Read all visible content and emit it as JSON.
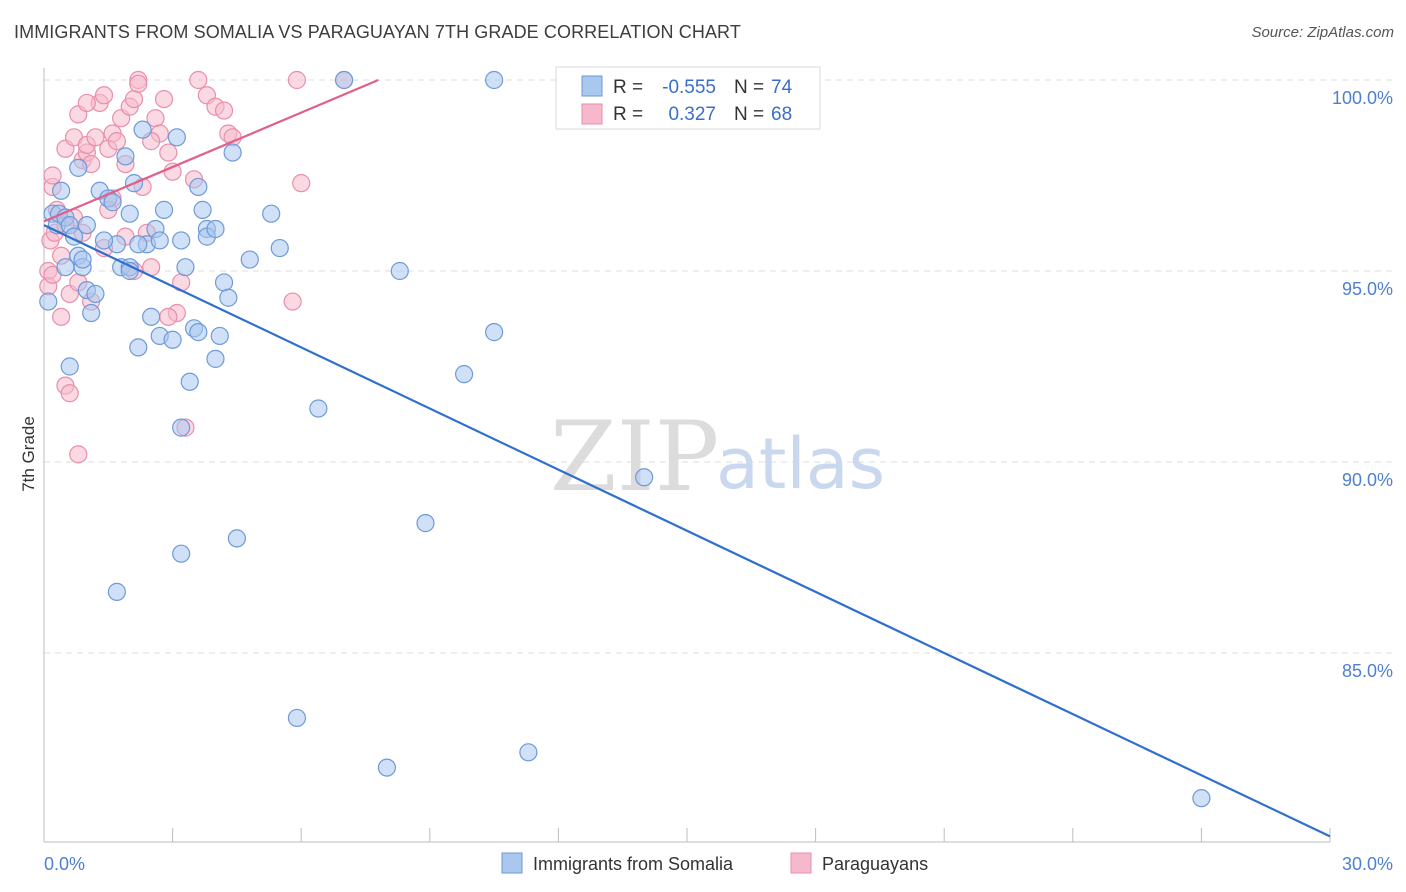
{
  "title": "IMMIGRANTS FROM SOMALIA VS PARAGUAYAN 7TH GRADE CORRELATION CHART",
  "source": "Source: ZipAtlas.com",
  "watermark": {
    "zip": "ZIP",
    "atlas": "atlas"
  },
  "colors": {
    "somalia_fill": "#aac7ee",
    "somalia_stroke": "#6f9ad8",
    "somalia_line": "#2f6fce",
    "paraguay_fill": "#f6b9cc",
    "paraguay_stroke": "#e98eab",
    "paraguay_line": "#e0608a",
    "tick_label": "#4f7fcf",
    "grid": "#dddddd"
  },
  "stats_box": {
    "rows": [
      {
        "r_label": "R =",
        "r_value": "-0.555",
        "n_label": "N =",
        "n_value": "74"
      },
      {
        "r_label": "R =",
        "r_value": "0.327",
        "n_label": "N =",
        "n_value": "68"
      }
    ]
  },
  "chart_data": {
    "type": "scatter",
    "title": "IMMIGRANTS FROM SOMALIA VS PARAGUAYAN 7TH GRADE CORRELATION CHART",
    "xlabel": "",
    "ylabel": "7th Grade",
    "xlim": [
      0,
      30
    ],
    "ylim": [
      80.2,
      100.9
    ],
    "x_tick_labels": [
      "0.0%",
      "30.0%"
    ],
    "y_ticks": [
      85,
      90,
      95,
      100
    ],
    "y_tick_labels": [
      "85.0%",
      "90.0%",
      "95.0%",
      "100.0%"
    ],
    "grid": true,
    "legend_position": "bottom-center",
    "series": [
      {
        "name": "Immigrants from Somalia",
        "r": -0.555,
        "n": 74,
        "trend": [
          [
            0,
            96.2
          ],
          [
            30,
            80.2
          ]
        ],
        "points": [
          [
            0.1,
            94.2
          ],
          [
            0.2,
            96.5
          ],
          [
            0.3,
            96.2
          ],
          [
            0.35,
            96.5
          ],
          [
            0.4,
            97.1
          ],
          [
            0.5,
            96.4
          ],
          [
            0.5,
            95.1
          ],
          [
            0.6,
            96.2
          ],
          [
            0.7,
            95.9
          ],
          [
            0.8,
            95.4
          ],
          [
            0.8,
            97.7
          ],
          [
            0.9,
            95.1
          ],
          [
            1.0,
            94.5
          ],
          [
            1.0,
            96.2
          ],
          [
            1.1,
            93.9
          ],
          [
            1.2,
            94.4
          ],
          [
            1.3,
            97.1
          ],
          [
            1.5,
            96.9
          ],
          [
            1.6,
            96.8
          ],
          [
            1.7,
            95.7
          ],
          [
            1.8,
            95.1
          ],
          [
            1.9,
            98.0
          ],
          [
            2.0,
            96.5
          ],
          [
            2.0,
            95.1
          ],
          [
            2.1,
            97.3
          ],
          [
            2.2,
            93.0
          ],
          [
            2.3,
            98.7
          ],
          [
            2.4,
            95.7
          ],
          [
            2.5,
            93.8
          ],
          [
            2.6,
            96.1
          ],
          [
            2.7,
            95.8
          ],
          [
            2.7,
            93.3
          ],
          [
            2.8,
            96.6
          ],
          [
            3.0,
            93.2
          ],
          [
            3.1,
            98.5
          ],
          [
            3.2,
            95.8
          ],
          [
            3.3,
            95.1
          ],
          [
            3.4,
            92.1
          ],
          [
            3.5,
            93.5
          ],
          [
            3.6,
            93.4
          ],
          [
            3.7,
            96.6
          ],
          [
            3.8,
            96.1
          ],
          [
            3.8,
            95.9
          ],
          [
            4.0,
            92.7
          ],
          [
            4.0,
            96.1
          ],
          [
            4.1,
            93.3
          ],
          [
            4.2,
            94.7
          ],
          [
            4.3,
            94.3
          ],
          [
            4.4,
            98.1
          ],
          [
            4.8,
            95.3
          ],
          [
            5.3,
            96.5
          ],
          [
            5.5,
            95.6
          ],
          [
            1.7,
            86.6
          ],
          [
            3.2,
            87.6
          ],
          [
            3.6,
            97.2
          ],
          [
            2.0,
            95.0
          ],
          [
            0.9,
            95.3
          ],
          [
            2.2,
            95.7
          ],
          [
            1.4,
            95.8
          ],
          [
            0.6,
            92.5
          ],
          [
            3.2,
            90.9
          ],
          [
            4.5,
            88.0
          ],
          [
            6.4,
            91.4
          ],
          [
            7.0,
            100.0
          ],
          [
            8.3,
            95.0
          ],
          [
            8.0,
            82.0
          ],
          [
            5.9,
            83.3
          ],
          [
            8.9,
            88.4
          ],
          [
            9.8,
            92.3
          ],
          [
            10.5,
            93.4
          ],
          [
            10.5,
            100.0
          ],
          [
            11.3,
            82.4
          ],
          [
            14.0,
            89.6
          ],
          [
            27.0,
            81.2
          ]
        ]
      },
      {
        "name": "Paraguayans",
        "r": 0.327,
        "n": 68,
        "trend": [
          [
            0,
            96.3
          ],
          [
            7.8,
            100.0
          ]
        ],
        "points": [
          [
            0.1,
            95.0
          ],
          [
            0.1,
            94.6
          ],
          [
            0.15,
            95.8
          ],
          [
            0.2,
            97.2
          ],
          [
            0.2,
            97.5
          ],
          [
            0.25,
            96.0
          ],
          [
            0.3,
            96.6
          ],
          [
            0.4,
            95.4
          ],
          [
            0.4,
            93.8
          ],
          [
            0.5,
            98.2
          ],
          [
            0.5,
            92.0
          ],
          [
            0.6,
            91.8
          ],
          [
            0.6,
            94.4
          ],
          [
            0.7,
            98.5
          ],
          [
            0.8,
            99.1
          ],
          [
            0.8,
            94.7
          ],
          [
            0.9,
            97.9
          ],
          [
            0.9,
            96.0
          ],
          [
            1.0,
            98.1
          ],
          [
            1.0,
            98.3
          ],
          [
            1.1,
            97.8
          ],
          [
            1.1,
            94.2
          ],
          [
            1.2,
            98.5
          ],
          [
            1.3,
            99.4
          ],
          [
            1.4,
            99.6
          ],
          [
            1.5,
            98.2
          ],
          [
            1.6,
            98.6
          ],
          [
            1.6,
            96.9
          ],
          [
            1.7,
            98.4
          ],
          [
            1.8,
            99.0
          ],
          [
            1.9,
            97.8
          ],
          [
            2.0,
            99.3
          ],
          [
            2.1,
            99.5
          ],
          [
            2.2,
            100.0
          ],
          [
            2.2,
            99.9
          ],
          [
            2.3,
            97.2
          ],
          [
            2.4,
            96.0
          ],
          [
            2.5,
            95.1
          ],
          [
            2.6,
            99.0
          ],
          [
            2.7,
            98.6
          ],
          [
            2.8,
            99.5
          ],
          [
            2.9,
            98.1
          ],
          [
            3.0,
            97.6
          ],
          [
            3.1,
            93.9
          ],
          [
            3.2,
            94.7
          ],
          [
            3.3,
            90.9
          ],
          [
            3.5,
            97.4
          ],
          [
            3.6,
            100.0
          ],
          [
            3.8,
            99.6
          ],
          [
            4.0,
            99.3
          ],
          [
            4.2,
            99.2
          ],
          [
            4.3,
            98.6
          ],
          [
            4.4,
            98.5
          ],
          [
            2.1,
            95.0
          ],
          [
            1.4,
            95.6
          ],
          [
            0.7,
            96.4
          ],
          [
            0.2,
            94.9
          ],
          [
            0.8,
            90.2
          ],
          [
            1.9,
            95.9
          ],
          [
            2.9,
            93.8
          ],
          [
            6.0,
            97.3
          ],
          [
            5.8,
            94.2
          ],
          [
            5.9,
            100.0
          ],
          [
            7.0,
            100.0
          ],
          [
            2.5,
            98.4
          ],
          [
            1.5,
            96.6
          ],
          [
            0.5,
            96.2
          ],
          [
            1.0,
            99.4
          ]
        ]
      }
    ]
  },
  "legend": {
    "items": [
      {
        "label": "Immigrants from Somalia"
      },
      {
        "label": "Paraguayans"
      }
    ]
  }
}
